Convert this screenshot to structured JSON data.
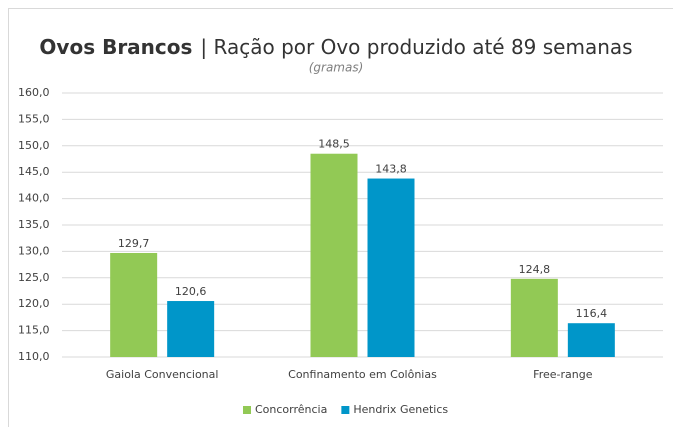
{
  "chart_data": {
    "type": "bar",
    "title": [
      "Ovos Brancos",
      "| Ração por Ovo produzido até 89 semanas"
    ],
    "subtitle": "(gramas)",
    "categories": [
      "Gaiola Convencional",
      "Confinamento em Colônias",
      "Free-range"
    ],
    "series": [
      {
        "name": "Concorrência",
        "color": "#92c955",
        "values": [
          129.7,
          148.5,
          124.8
        ],
        "value_labels": [
          "129,7",
          "148,5",
          "124,8"
        ]
      },
      {
        "name": "Hendrix Genetics",
        "color": "#0096c9",
        "values": [
          120.6,
          143.8,
          116.4
        ],
        "value_labels": [
          "120,6",
          "143,8",
          "116,4"
        ]
      }
    ],
    "ylim": [
      110,
      160
    ],
    "yticks": [
      {
        "value": 110,
        "label": "110,0"
      },
      {
        "value": 115,
        "label": "115,0"
      },
      {
        "value": 120,
        "label": "120,0"
      },
      {
        "value": 125,
        "label": "125,0"
      },
      {
        "value": 130,
        "label": "130,0"
      },
      {
        "value": 135,
        "label": "135,0"
      },
      {
        "value": 140,
        "label": "140,0"
      },
      {
        "value": 145,
        "label": "145,0"
      },
      {
        "value": 150,
        "label": "150,0"
      },
      {
        "value": 155,
        "label": "155,0"
      },
      {
        "value": 160,
        "label": "160,0"
      }
    ],
    "grid": true,
    "legend": "bottom"
  }
}
